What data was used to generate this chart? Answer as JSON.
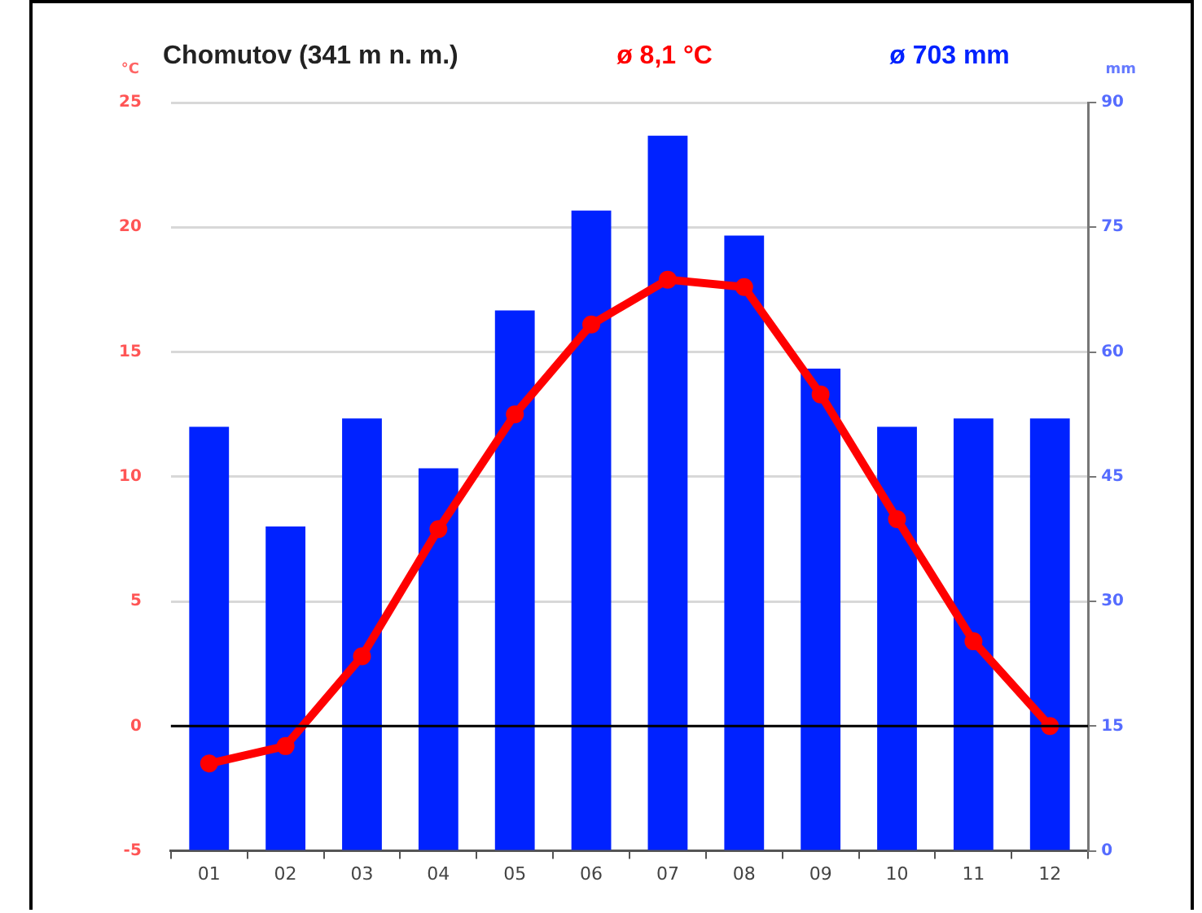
{
  "chart_data": {
    "type": "bar",
    "title": "Chomutov (341 m n. m.)",
    "ylabel": "°C",
    "y2label": "mm",
    "annotations": [
      "ø 8,1 °C",
      "ø 703 mm"
    ],
    "categories": [
      "01",
      "02",
      "03",
      "04",
      "05",
      "06",
      "07",
      "08",
      "09",
      "10",
      "11",
      "12"
    ],
    "series": [
      {
        "type": "line",
        "color": "#ff0000",
        "values": [
          -1.5,
          -0.8,
          2.8,
          7.9,
          12.5,
          16.1,
          17.9,
          17.6,
          13.3,
          8.3,
          3.4,
          0.0
        ]
      },
      {
        "axis": "y2",
        "color": "#0022ff",
        "values": [
          51,
          39,
          52,
          46,
          65,
          77,
          86,
          74,
          58,
          51,
          52,
          52
        ]
      }
    ],
    "ylim": [
      -5,
      25
    ],
    "yticks": [
      -5,
      0,
      5,
      10,
      15,
      20,
      25
    ],
    "y2lim": [
      0,
      90
    ],
    "y2ticks": [
      0,
      15,
      30,
      45,
      60,
      75,
      90
    ],
    "ref_lines": [
      {
        "axis": "y",
        "value": 0,
        "color": "#000000"
      }
    ],
    "grid": "y",
    "legend": false,
    "marker": "circle"
  }
}
